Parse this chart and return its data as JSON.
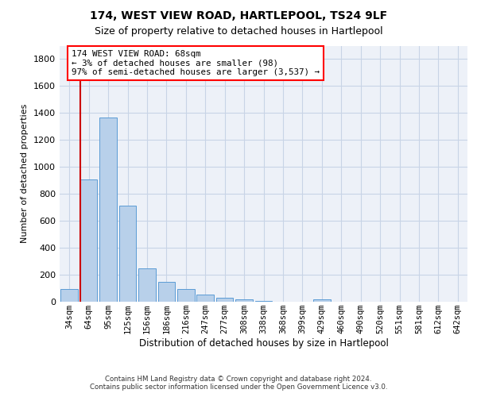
{
  "title1": "174, WEST VIEW ROAD, HARTLEPOOL, TS24 9LF",
  "title2": "Size of property relative to detached houses in Hartlepool",
  "xlabel": "Distribution of detached houses by size in Hartlepool",
  "ylabel": "Number of detached properties",
  "categories": [
    "34sqm",
    "64sqm",
    "95sqm",
    "125sqm",
    "156sqm",
    "186sqm",
    "216sqm",
    "247sqm",
    "277sqm",
    "308sqm",
    "338sqm",
    "368sqm",
    "399sqm",
    "429sqm",
    "460sqm",
    "490sqm",
    "520sqm",
    "551sqm",
    "581sqm",
    "612sqm",
    "642sqm"
  ],
  "values": [
    95,
    910,
    1365,
    710,
    250,
    148,
    95,
    52,
    28,
    18,
    5,
    0,
    0,
    18,
    0,
    0,
    0,
    0,
    0,
    0,
    0
  ],
  "bar_color": "#b8d0ea",
  "bar_edge_color": "#5b9bd5",
  "grid_color": "#c8d4e6",
  "vline_color": "#cc0000",
  "annotation_text": "174 WEST VIEW ROAD: 68sqm\n← 3% of detached houses are smaller (98)\n97% of semi-detached houses are larger (3,537) →",
  "ylim": [
    0,
    1900
  ],
  "yticks": [
    0,
    200,
    400,
    600,
    800,
    1000,
    1200,
    1400,
    1600,
    1800
  ],
  "footer": "Contains HM Land Registry data © Crown copyright and database right 2024.\nContains public sector information licensed under the Open Government Licence v3.0.",
  "bg_color": "#edf1f8"
}
